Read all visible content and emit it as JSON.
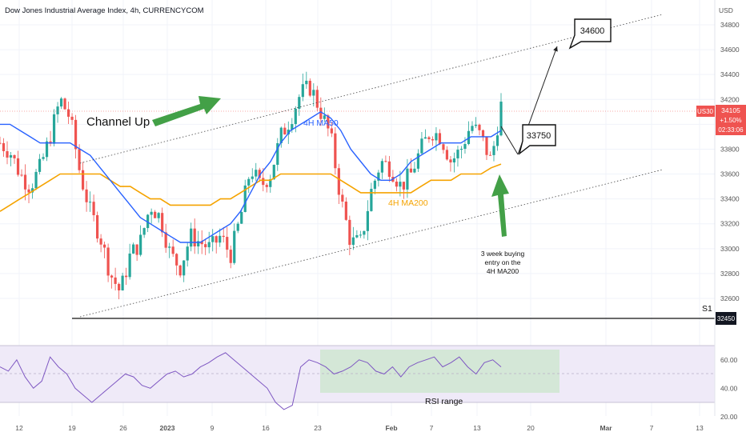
{
  "chart_data": {
    "type": "line",
    "title": "Dow Jones Industrial Average Index, 4h, CURRENCYCOM",
    "currency": "USD",
    "symbol": "US30",
    "last_price": "34105",
    "change": "+1.50%",
    "countdown": "02:33:06",
    "y_ticks": [
      "34800",
      "34600",
      "34400",
      "34200",
      "34000",
      "33800",
      "33600",
      "33400",
      "33200",
      "33000",
      "32800",
      "32600"
    ],
    "y_range": [
      32480,
      34920
    ],
    "x_ticks": [
      "12",
      "19",
      "26",
      "2023",
      "9",
      "16",
      "23",
      "Feb",
      "7",
      "13",
      "20",
      "Mar",
      "7",
      "13"
    ],
    "price_x": [
      0,
      2,
      4,
      6,
      8,
      10,
      12,
      14,
      16,
      18,
      20,
      22,
      24,
      26,
      28,
      30,
      32,
      34,
      36,
      38,
      40,
      42,
      44,
      46,
      48,
      50,
      52,
      54,
      56,
      58,
      60,
      62,
      64,
      66,
      68,
      70,
      72,
      74,
      76,
      78,
      80,
      82,
      84,
      86,
      88,
      90,
      92,
      94,
      96,
      98,
      100
    ],
    "price_close": [
      33850,
      33780,
      33600,
      33500,
      33650,
      33900,
      34200,
      34050,
      33600,
      33300,
      33100,
      32800,
      32650,
      32950,
      33050,
      33350,
      33250,
      32950,
      32850,
      33100,
      33050,
      33000,
      33100,
      32950,
      33250,
      33650,
      33500,
      33600,
      33900,
      34050,
      34250,
      34300,
      34100,
      33900,
      33400,
      33050,
      33050,
      33450,
      33700,
      33650,
      33500,
      33600,
      33800,
      33950,
      33900,
      33700,
      33800,
      34000,
      33900,
      33700,
      34150
    ],
    "series": [
      {
        "name": "4H MA50",
        "color": "#2962ff",
        "y": [
          34000,
          34000,
          33950,
          33900,
          33850,
          33850,
          33850,
          33850,
          33800,
          33750,
          33650,
          33550,
          33450,
          33350,
          33250,
          33200,
          33150,
          33100,
          33050,
          33050,
          33050,
          33100,
          33150,
          33200,
          33300,
          33450,
          33600,
          33700,
          33850,
          33950,
          34000,
          34050,
          34100,
          34050,
          33950,
          33800,
          33700,
          33600,
          33550,
          33550,
          33600,
          33700,
          33750,
          33800,
          33850,
          33850,
          33850,
          33900,
          33900,
          33900,
          33950
        ]
      },
      {
        "name": "4H MA200",
        "color": "#f5a300",
        "y": [
          33300,
          33350,
          33400,
          33450,
          33500,
          33550,
          33600,
          33600,
          33600,
          33600,
          33600,
          33550,
          33500,
          33500,
          33450,
          33400,
          33400,
          33350,
          33350,
          33350,
          33350,
          33350,
          33400,
          33400,
          33450,
          33500,
          33550,
          33550,
          33600,
          33600,
          33600,
          33600,
          33600,
          33600,
          33550,
          33500,
          33450,
          33450,
          33450,
          33450,
          33450,
          33450,
          33500,
          33550,
          33550,
          33550,
          33600,
          33600,
          33600,
          33650,
          33680
        ]
      }
    ],
    "annotations": {
      "channel_label": "Channel Up",
      "ma50_label": "4H MA50",
      "ma200_label": "4H MA200",
      "target_high": "34600",
      "target_low": "33750",
      "buy_note_1": "3 week buying",
      "buy_note_2": "entry on the",
      "buy_note_3": "4H MA200",
      "support_label": "S1",
      "support_value": "32450"
    },
    "rsi": {
      "y_ticks": [
        "60.00",
        "40.00",
        "20.00"
      ],
      "range_label": "RSI range",
      "values": [
        55,
        52,
        60,
        48,
        40,
        45,
        62,
        55,
        50,
        40,
        35,
        30,
        35,
        40,
        45,
        50,
        48,
        42,
        40,
        45,
        50,
        52,
        48,
        50,
        55,
        58,
        62,
        65,
        60,
        55,
        50,
        45,
        40,
        30,
        25,
        28,
        55,
        60,
        58,
        55,
        50,
        52,
        55,
        60,
        58,
        52,
        50,
        55,
        48,
        55,
        58,
        60,
        62,
        55,
        58,
        62,
        55,
        50,
        58,
        60,
        55
      ]
    }
  }
}
